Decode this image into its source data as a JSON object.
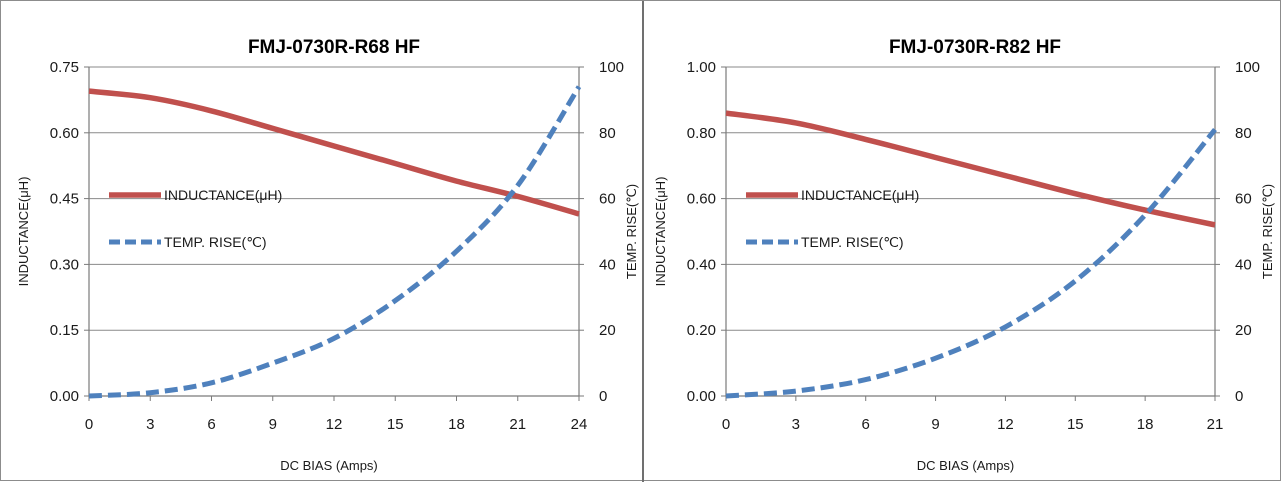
{
  "chart_data": [
    {
      "type": "line",
      "title": "FMJ-0730R-R68 HF",
      "xlabel": "DC BIAS  (Amps)",
      "ylabel_left": "INDUCTANCE(μH)",
      "ylabel_right": "TEMP.  RISE(℃)",
      "xlim": [
        0,
        24
      ],
      "xticks": [
        "0",
        "3",
        "6",
        "9",
        "12",
        "15",
        "18",
        "21",
        "24"
      ],
      "ylim_left": [
        0,
        0.75
      ],
      "yticks_left": [
        "0.00",
        "0.15",
        "0.30",
        "0.45",
        "0.60",
        "0.75"
      ],
      "ylim_right": [
        0,
        100
      ],
      "yticks_right": [
        "0",
        "20",
        "40",
        "60",
        "80",
        "100"
      ],
      "grid": "horizontal",
      "legend_position": "left",
      "series": [
        {
          "name": "INDUCTANCE(μH)",
          "axis": "left",
          "color": "#c0504d",
          "style": "solid",
          "x": [
            0,
            3,
            6,
            9,
            12,
            15,
            18,
            21,
            24
          ],
          "y": [
            0.695,
            0.68,
            0.65,
            0.61,
            0.57,
            0.53,
            0.49,
            0.455,
            0.415
          ]
        },
        {
          "name": "TEMP.  RISE(℃)",
          "axis": "right",
          "color": "#4f81bd",
          "style": "dashed",
          "x": [
            0,
            3,
            6,
            9,
            12,
            15,
            18,
            21,
            24
          ],
          "y": [
            0,
            1,
            4,
            10,
            17.5,
            29,
            44,
            64,
            94
          ]
        }
      ]
    },
    {
      "type": "line",
      "title": "FMJ-0730R-R82 HF",
      "xlabel": "DC BIAS  (Amps)",
      "ylabel_left": "INDUCTANCE(μH)",
      "ylabel_right": "TEMP.  RISE(℃)",
      "xlim": [
        0,
        21
      ],
      "xticks": [
        "0",
        "3",
        "6",
        "9",
        "12",
        "15",
        "18",
        "21"
      ],
      "ylim_left": [
        0,
        1.0
      ],
      "yticks_left": [
        "0.00",
        "0.20",
        "0.40",
        "0.60",
        "0.80",
        "1.00"
      ],
      "ylim_right": [
        0,
        100
      ],
      "yticks_right": [
        "0",
        "20",
        "40",
        "60",
        "80",
        "100"
      ],
      "grid": "horizontal",
      "legend_position": "left",
      "series": [
        {
          "name": "INDUCTANCE(μH)",
          "axis": "left",
          "color": "#c0504d",
          "style": "solid",
          "x": [
            0,
            3,
            6,
            9,
            12,
            15,
            18,
            21
          ],
          "y": [
            0.86,
            0.83,
            0.78,
            0.725,
            0.67,
            0.615,
            0.565,
            0.52
          ]
        },
        {
          "name": "TEMP.  RISE(℃)",
          "axis": "right",
          "color": "#4f81bd",
          "style": "dashed",
          "x": [
            0,
            3,
            6,
            9,
            12,
            15,
            18,
            21
          ],
          "y": [
            0,
            1.5,
            5,
            11.5,
            21,
            35,
            55,
            81
          ]
        }
      ]
    }
  ]
}
